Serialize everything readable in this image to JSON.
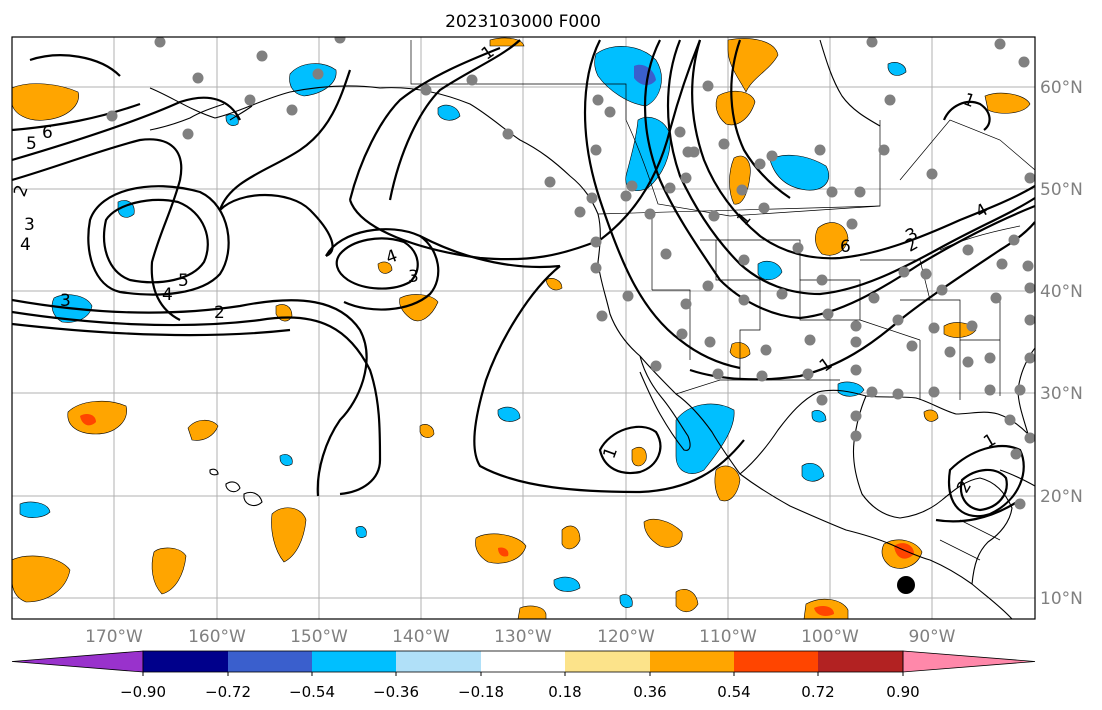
{
  "title": "2023103000 F000",
  "map": {
    "lon_ticks": [
      "170°W",
      "160°W",
      "150°W",
      "140°W",
      "130°W",
      "120°W",
      "110°W",
      "100°W",
      "90°W"
    ],
    "lat_ticks": [
      "60°N",
      "50°N",
      "40°N",
      "30°N",
      "20°N",
      "10°N"
    ],
    "contour_labels": [
      "1",
      "6",
      "5",
      "2",
      "3",
      "4",
      "3",
      "5",
      "4",
      "2",
      "4",
      "3",
      "1",
      "1",
      "6",
      "3",
      "2",
      "4",
      "1",
      "1",
      "2",
      "1"
    ],
    "colors": {
      "land_line": "#000000",
      "grid": "#b0b0b0",
      "dot": "#808080",
      "marker": "#000000"
    }
  },
  "colorbar": {
    "tick_labels": [
      "−0.90",
      "−0.72",
      "−0.54",
      "−0.36",
      "−0.18",
      "0.18",
      "0.36",
      "0.54",
      "0.72",
      "0.90"
    ],
    "colors": [
      "#9932cc",
      "#00008b",
      "#3a5fcd",
      "#00bfff",
      "#b0e0f8",
      "#ffffff",
      "#fce38a",
      "#ffa500",
      "#ff4500",
      "#b22222",
      "#ff88aa"
    ]
  }
}
